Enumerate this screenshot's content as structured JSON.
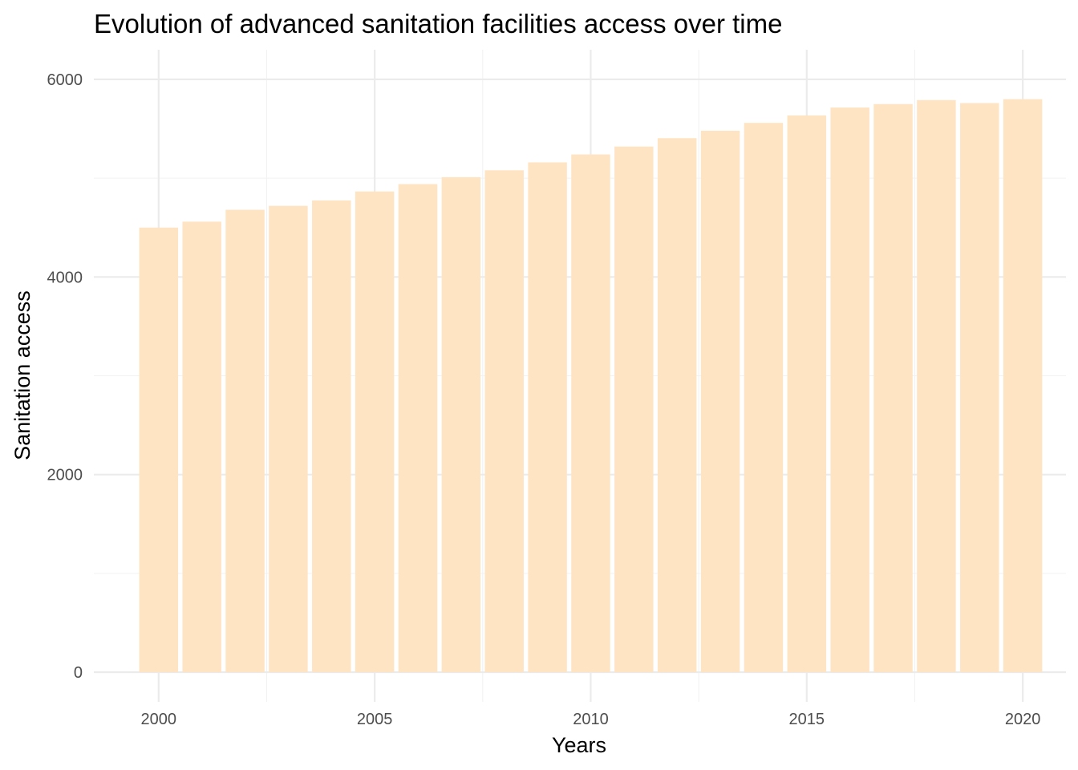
{
  "chart_data": {
    "type": "bar",
    "title": "Evolution of advanced sanitation facilities access over time",
    "xlabel": "Years",
    "ylabel": "Sanitation access",
    "x": [
      2000,
      2001,
      2002,
      2003,
      2004,
      2005,
      2006,
      2007,
      2008,
      2009,
      2010,
      2011,
      2012,
      2013,
      2014,
      2015,
      2016,
      2017,
      2018,
      2019,
      2020
    ],
    "values": [
      4500,
      4560,
      4680,
      4720,
      4775,
      4865,
      4940,
      5010,
      5080,
      5160,
      5240,
      5320,
      5405,
      5480,
      5560,
      5635,
      5715,
      5750,
      5790,
      5760,
      5800
    ],
    "xlim": [
      1998.5,
      2021
    ],
    "ylim": [
      -300,
      6300
    ],
    "x_ticks": [
      "2000",
      "2005",
      "2010",
      "2015",
      "2020"
    ],
    "y_ticks": [
      "0",
      "2000",
      "4000",
      "6000"
    ],
    "bar_color": "#FFE4C4",
    "grid": true,
    "legend": "none"
  }
}
